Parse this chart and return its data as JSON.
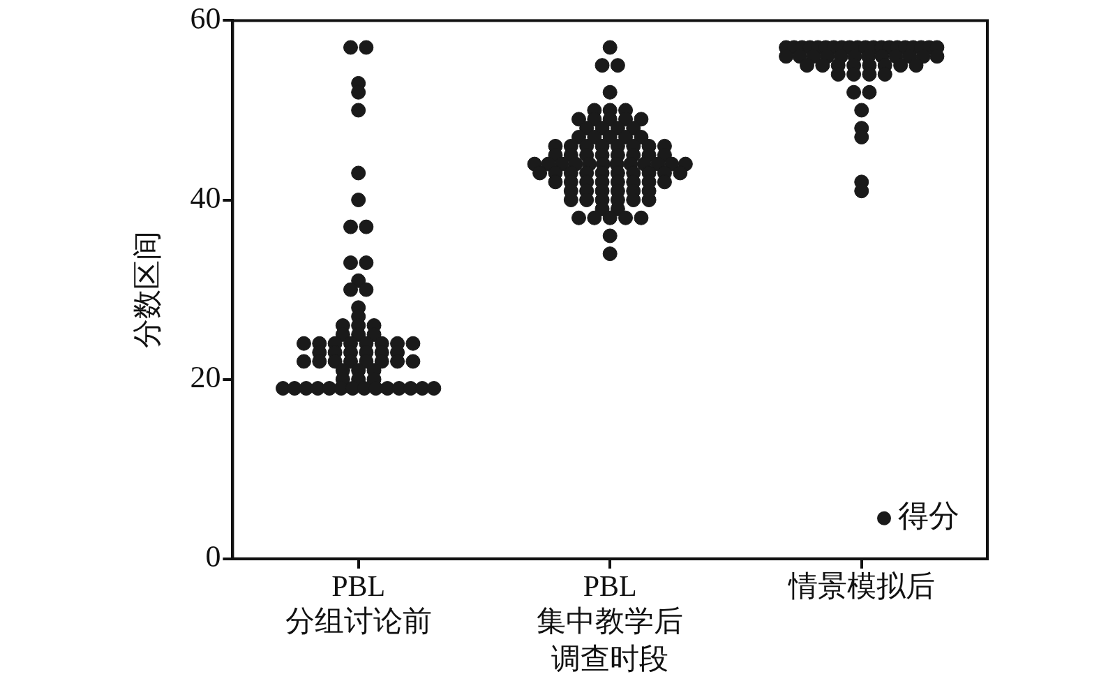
{
  "chart_data": {
    "type": "scatter",
    "xlabel": "调查时段",
    "ylabel": "分数区间",
    "categories": [
      "PBL\n分组讨论前",
      "PBL\n集中教学后",
      "情景模拟后"
    ],
    "ylim": [
      0,
      60
    ],
    "yticks": [
      0,
      20,
      40,
      60
    ],
    "grid": false,
    "legend": "bottom right",
    "marker": "circle",
    "series": [
      {
        "name": "得分",
        "color": "#1a1a1a",
        "x": [
          "PBL\n分组讨论前",
          "PBL\n分组讨论前",
          "PBL\n分组讨论前",
          "PBL\n分组讨论前",
          "PBL\n分组讨论前",
          "PBL\n分组讨论前",
          "PBL\n分组讨论前",
          "PBL\n分组讨论前",
          "PBL\n分组讨论前",
          "PBL\n分组讨论前",
          "PBL\n分组讨论前",
          "PBL\n分组讨论前",
          "PBL\n分组讨论前",
          "PBL\n分组讨论前",
          "PBL\n分组讨论前",
          "PBL\n分组讨论前",
          "PBL\n分组讨论前",
          "PBL\n分组讨论前",
          "PBL\n分组讨论前",
          "PBL\n分组讨论前",
          "PBL\n分组讨论前",
          "PBL\n分组讨论前",
          "PBL\n分组讨论前",
          "PBL\n分组讨论前",
          "PBL\n分组讨论前",
          "PBL\n分组讨论前",
          "PBL\n分组讨论前",
          "PBL\n分组讨论前",
          "PBL\n分组讨论前",
          "PBL\n分组讨论前",
          "PBL\n分组讨论前",
          "PBL\n分组讨论前",
          "PBL\n分组讨论前",
          "PBL\n分组讨论前",
          "PBL\n分组讨论前",
          "PBL\n分组讨论前",
          "PBL\n分组讨论前",
          "PBL\n分组讨论前",
          "PBL\n分组讨论前",
          "PBL\n分组讨论前",
          "PBL\n分组讨论前",
          "PBL\n分组讨论前",
          "PBL\n分组讨论前",
          "PBL\n分组讨论前",
          "PBL\n分组讨论前",
          "PBL\n分组讨论前",
          "PBL\n分组讨论前",
          "PBL\n分组讨论前",
          "PBL\n分组讨论前",
          "PBL\n分组讨论前",
          "PBL\n分组讨论前",
          "PBL\n分组讨论前",
          "PBL\n分组讨论前",
          "PBL\n分组讨论前",
          "PBL\n分组讨论前",
          "PBL\n分组讨论前",
          "PBL\n分组讨论前",
          "PBL\n分组讨论前",
          "PBL\n分组讨论前",
          "PBL\n分组讨论前",
          "PBL\n分组讨论前",
          "PBL\n分组讨论前",
          "PBL\n分组讨论前",
          "PBL\n分组讨论前",
          "PBL\n集中教学后",
          "PBL\n集中教学后",
          "PBL\n集中教学后",
          "PBL\n集中教学后",
          "PBL\n集中教学后",
          "PBL\n集中教学后",
          "PBL\n集中教学后",
          "PBL\n集中教学后",
          "PBL\n集中教学后",
          "PBL\n集中教学后",
          "PBL\n集中教学后",
          "PBL\n集中教学后",
          "PBL\n集中教学后",
          "PBL\n集中教学后",
          "PBL\n集中教学后",
          "PBL\n集中教学后",
          "PBL\n集中教学后",
          "PBL\n集中教学后",
          "PBL\n集中教学后",
          "PBL\n集中教学后",
          "PBL\n集中教学后",
          "PBL\n集中教学后",
          "PBL\n集中教学后",
          "PBL\n集中教学后",
          "PBL\n集中教学后",
          "PBL\n集中教学后",
          "PBL\n集中教学后",
          "PBL\n集中教学后",
          "PBL\n集中教学后",
          "PBL\n集中教学后",
          "PBL\n集中教学后",
          "PBL\n集中教学后",
          "PBL\n集中教学后",
          "PBL\n集中教学后",
          "PBL\n集中教学后",
          "PBL\n集中教学后",
          "PBL\n集中教学后",
          "PBL\n集中教学后",
          "PBL\n集中教学后",
          "PBL\n集中教学后",
          "PBL\n集中教学后",
          "PBL\n集中教学后",
          "PBL\n集中教学后",
          "PBL\n集中教学后",
          "PBL\n集中教学后",
          "PBL\n集中教学后",
          "PBL\n集中教学后",
          "PBL\n集中教学后",
          "PBL\n集中教学后",
          "PBL\n集中教学后",
          "PBL\n集中教学后",
          "PBL\n集中教学后",
          "PBL\n集中教学后",
          "PBL\n集中教学后",
          "PBL\n集中教学后",
          "PBL\n集中教学后",
          "PBL\n集中教学后",
          "PBL\n集中教学后",
          "PBL\n集中教学后",
          "PBL\n集中教学后",
          "PBL\n集中教学后",
          "PBL\n集中教学后",
          "PBL\n集中教学后",
          "PBL\n集中教学后",
          "PBL\n集中教学后",
          "PBL\n集中教学后",
          "PBL\n集中教学后",
          "PBL\n集中教学后",
          "PBL\n集中教学后",
          "PBL\n集中教学后",
          "PBL\n集中教学后",
          "PBL\n集中教学后",
          "PBL\n集中教学后",
          "PBL\n集中教学后",
          "PBL\n集中教学后",
          "PBL\n集中教学后",
          "PBL\n集中教学后",
          "PBL\n集中教学后",
          "PBL\n集中教学后",
          "PBL\n集中教学后",
          "PBL\n集中教学后",
          "PBL\n集中教学后",
          "PBL\n集中教学后",
          "PBL\n集中教学后",
          "PBL\n集中教学后",
          "PBL\n集中教学后",
          "PBL\n集中教学后",
          "PBL\n集中教学后",
          "情景模拟后",
          "情景模拟后",
          "情景模拟后",
          "情景模拟后",
          "情景模拟后",
          "情景模拟后",
          "情景模拟后",
          "情景模拟后",
          "情景模拟后",
          "情景模拟后",
          "情景模拟后",
          "情景模拟后",
          "情景模拟后",
          "情景模拟后",
          "情景模拟后",
          "情景模拟后",
          "情景模拟后",
          "情景模拟后",
          "情景模拟后",
          "情景模拟后",
          "情景模拟后",
          "情景模拟后",
          "情景模拟后",
          "情景模拟后",
          "情景模拟后",
          "情景模拟后",
          "情景模拟后",
          "情景模拟后",
          "情景模拟后",
          "情景模拟后",
          "情景模拟后",
          "情景模拟后",
          "情景模拟后",
          "情景模拟后",
          "情景模拟后",
          "情景模拟后",
          "情景模拟后",
          "情景模拟后",
          "情景模拟后",
          "情景模拟后",
          "情景模拟后",
          "情景模拟后",
          "情景模拟后",
          "情景模拟后",
          "情景模拟后",
          "情景模拟后",
          "情景模拟后",
          "情景模拟后",
          "情景模拟后",
          "情景模拟后",
          "情景模拟后"
        ],
        "values": [
          57,
          57,
          53,
          52,
          50,
          43,
          40,
          37,
          37,
          33,
          33,
          31,
          30,
          30,
          28,
          27,
          26,
          26,
          26,
          25,
          25,
          25,
          24,
          24,
          24,
          24,
          24,
          24,
          24,
          24,
          23,
          23,
          23,
          23,
          23,
          23,
          22,
          22,
          22,
          22,
          22,
          22,
          22,
          22,
          21,
          21,
          21,
          20,
          20,
          20,
          19,
          19,
          19,
          19,
          19,
          19,
          19,
          19,
          19,
          19,
          19,
          19,
          19,
          19,
          57,
          55,
          55,
          52,
          50,
          50,
          50,
          49,
          49,
          49,
          49,
          49,
          48,
          48,
          48,
          48,
          47,
          47,
          47,
          47,
          47,
          46,
          46,
          46,
          46,
          46,
          46,
          46,
          46,
          45,
          45,
          45,
          45,
          45,
          45,
          45,
          45,
          44,
          44,
          44,
          44,
          44,
          44,
          44,
          44,
          44,
          44,
          44,
          44,
          43,
          43,
          43,
          43,
          43,
          43,
          43,
          43,
          43,
          43,
          42,
          42,
          42,
          42,
          42,
          42,
          42,
          42,
          41,
          41,
          41,
          41,
          41,
          41,
          40,
          40,
          40,
          40,
          40,
          40,
          39,
          39,
          38,
          38,
          38,
          38,
          38,
          36,
          34,
          57,
          57,
          57,
          57,
          57,
          57,
          57,
          57,
          57,
          57,
          57,
          57,
          57,
          57,
          57,
          57,
          57,
          57,
          57,
          57,
          56,
          56,
          56,
          56,
          56,
          56,
          56,
          56,
          56,
          56,
          56,
          56,
          55,
          55,
          55,
          55,
          55,
          55,
          55,
          55,
          54,
          54,
          54,
          54,
          52,
          52,
          50,
          48,
          47,
          42,
          41
        ]
      }
    ]
  }
}
